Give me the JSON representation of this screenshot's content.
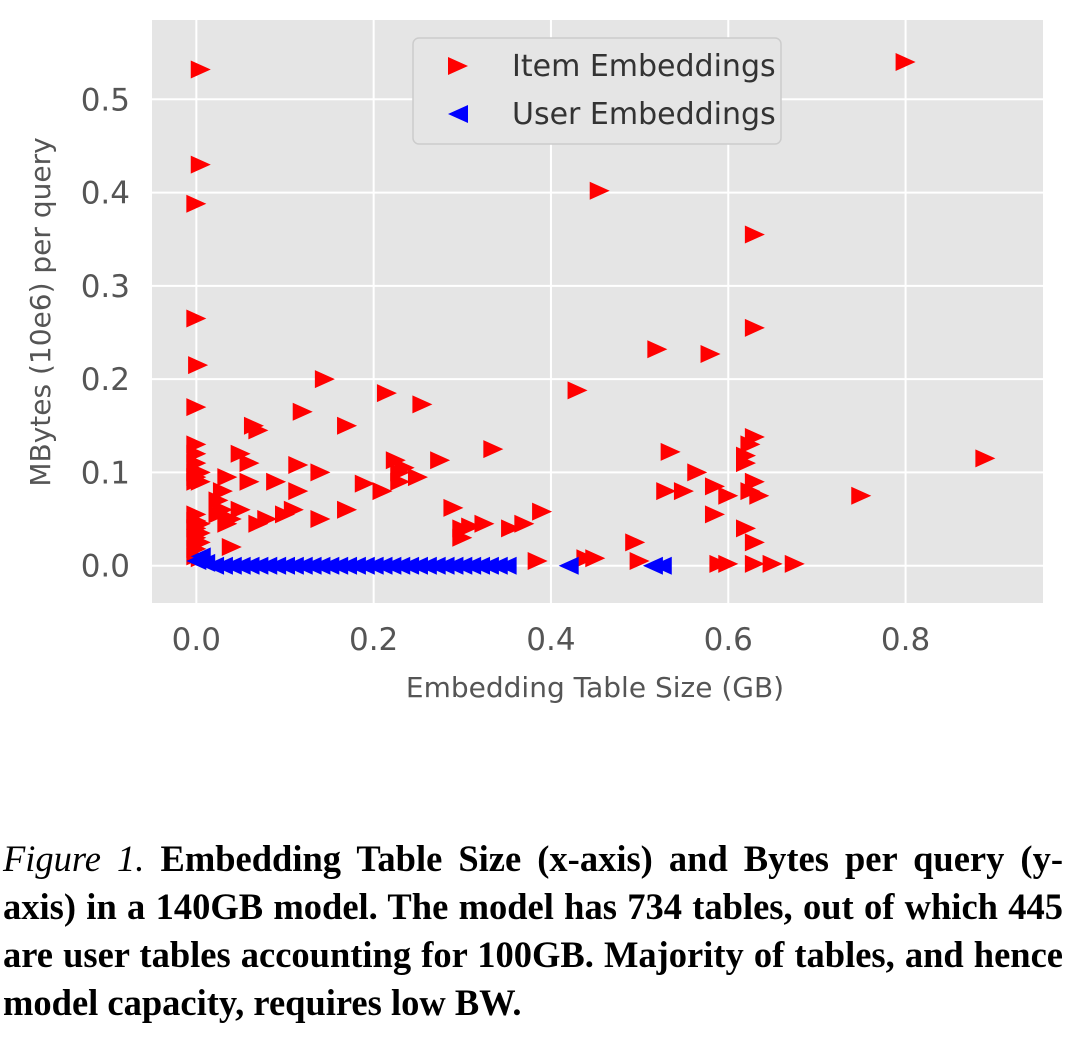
{
  "chart_data": {
    "type": "scatter",
    "xlabel": "Embedding Table Size (GB)",
    "ylabel": "MBytes (10e6) per query",
    "xlim": [
      -0.05,
      0.955
    ],
    "ylim": [
      -0.04,
      0.585
    ],
    "xticks": [
      0.0,
      0.2,
      0.4,
      0.6,
      0.8
    ],
    "xtick_labels": [
      "0.0",
      "0.2",
      "0.4",
      "0.6",
      "0.8"
    ],
    "yticks": [
      0.0,
      0.1,
      0.2,
      0.3,
      0.4,
      0.5
    ],
    "ytick_labels": [
      "0.0",
      "0.1",
      "0.2",
      "0.3",
      "0.4",
      "0.5"
    ],
    "grid": true,
    "legend_position": "top-center",
    "series": [
      {
        "name": "Item Embeddings",
        "color": "#ff0000",
        "marker": "triangle-right",
        "points": [
          [
            0.005,
            0.532
          ],
          [
            0.005,
            0.43
          ],
          [
            0.0,
            0.388
          ],
          [
            0.0,
            0.265
          ],
          [
            0.002,
            0.215
          ],
          [
            0.0,
            0.17
          ],
          [
            0.0,
            0.13
          ],
          [
            0.0,
            0.12
          ],
          [
            0.0,
            0.11
          ],
          [
            0.0,
            0.1
          ],
          [
            0.0,
            0.095
          ],
          [
            0.0,
            0.09
          ],
          [
            0.005,
            0.1
          ],
          [
            0.005,
            0.09
          ],
          [
            0.0,
            0.055
          ],
          [
            0.0,
            0.048
          ],
          [
            0.0,
            0.04
          ],
          [
            0.0,
            0.03
          ],
          [
            0.005,
            0.045
          ],
          [
            0.005,
            0.035
          ],
          [
            0.005,
            0.025
          ],
          [
            0.0,
            0.018
          ],
          [
            0.0,
            0.01
          ],
          [
            0.005,
            0.008
          ],
          [
            0.035,
            0.095
          ],
          [
            0.03,
            0.08
          ],
          [
            0.025,
            0.07
          ],
          [
            0.03,
            0.06
          ],
          [
            0.025,
            0.055
          ],
          [
            0.04,
            0.05
          ],
          [
            0.035,
            0.045
          ],
          [
            0.04,
            0.02
          ],
          [
            0.05,
            0.06
          ],
          [
            0.05,
            0.12
          ],
          [
            0.06,
            0.11
          ],
          [
            0.06,
            0.09
          ],
          [
            0.065,
            0.15
          ],
          [
            0.07,
            0.145
          ],
          [
            0.07,
            0.045
          ],
          [
            0.08,
            0.05
          ],
          [
            0.09,
            0.09
          ],
          [
            0.1,
            0.055
          ],
          [
            0.11,
            0.06
          ],
          [
            0.115,
            0.108
          ],
          [
            0.115,
            0.08
          ],
          [
            0.12,
            0.165
          ],
          [
            0.14,
            0.1
          ],
          [
            0.145,
            0.2
          ],
          [
            0.14,
            0.05
          ],
          [
            0.17,
            0.15
          ],
          [
            0.17,
            0.06
          ],
          [
            0.19,
            0.088
          ],
          [
            0.21,
            0.08
          ],
          [
            0.215,
            0.185
          ],
          [
            0.225,
            0.113
          ],
          [
            0.23,
            0.1
          ],
          [
            0.235,
            0.105
          ],
          [
            0.23,
            0.09
          ],
          [
            0.25,
            0.095
          ],
          [
            0.255,
            0.173
          ],
          [
            0.275,
            0.113
          ],
          [
            0.29,
            0.062
          ],
          [
            0.3,
            0.04
          ],
          [
            0.3,
            0.03
          ],
          [
            0.31,
            0.042
          ],
          [
            0.325,
            0.045
          ],
          [
            0.335,
            0.125
          ],
          [
            0.355,
            0.04
          ],
          [
            0.37,
            0.045
          ],
          [
            0.39,
            0.058
          ],
          [
            0.385,
            0.005
          ],
          [
            0.43,
            0.188
          ],
          [
            0.44,
            0.008
          ],
          [
            0.45,
            0.008
          ],
          [
            0.455,
            0.402
          ],
          [
            0.495,
            0.025
          ],
          [
            0.5,
            0.005
          ],
          [
            0.52,
            0.232
          ],
          [
            0.53,
            0.08
          ],
          [
            0.535,
            0.122
          ],
          [
            0.55,
            0.08
          ],
          [
            0.565,
            0.1
          ],
          [
            0.58,
            0.227
          ],
          [
            0.585,
            0.085
          ],
          [
            0.585,
            0.055
          ],
          [
            0.6,
            0.075
          ],
          [
            0.59,
            0.002
          ],
          [
            0.6,
            0.002
          ],
          [
            0.62,
            0.118
          ],
          [
            0.62,
            0.11
          ],
          [
            0.625,
            0.13
          ],
          [
            0.63,
            0.138
          ],
          [
            0.63,
            0.09
          ],
          [
            0.625,
            0.08
          ],
          [
            0.635,
            0.075
          ],
          [
            0.62,
            0.04
          ],
          [
            0.63,
            0.025
          ],
          [
            0.63,
            0.355
          ],
          [
            0.63,
            0.255
          ],
          [
            0.63,
            0.002
          ],
          [
            0.65,
            0.002
          ],
          [
            0.675,
            0.002
          ],
          [
            0.75,
            0.075
          ],
          [
            0.8,
            0.54
          ],
          [
            0.89,
            0.115
          ]
        ]
      },
      {
        "name": "User Embeddings",
        "color": "#0000ff",
        "marker": "triangle-left",
        "points": [
          [
            0.0,
            0.005
          ],
          [
            0.005,
            0.01
          ],
          [
            0.01,
            0.003
          ],
          [
            0.02,
            0.0
          ],
          [
            0.03,
            0.0
          ],
          [
            0.04,
            0.0
          ],
          [
            0.05,
            0.0
          ],
          [
            0.06,
            0.0
          ],
          [
            0.07,
            0.0
          ],
          [
            0.08,
            0.0
          ],
          [
            0.09,
            0.0
          ],
          [
            0.1,
            0.0
          ],
          [
            0.11,
            0.0
          ],
          [
            0.12,
            0.0
          ],
          [
            0.13,
            0.0
          ],
          [
            0.14,
            0.0
          ],
          [
            0.15,
            0.0
          ],
          [
            0.16,
            0.0
          ],
          [
            0.17,
            0.0
          ],
          [
            0.18,
            0.0
          ],
          [
            0.19,
            0.0
          ],
          [
            0.2,
            0.0
          ],
          [
            0.21,
            0.0
          ],
          [
            0.22,
            0.0
          ],
          [
            0.23,
            0.0
          ],
          [
            0.24,
            0.0
          ],
          [
            0.25,
            0.0
          ],
          [
            0.26,
            0.0
          ],
          [
            0.27,
            0.0
          ],
          [
            0.28,
            0.0
          ],
          [
            0.29,
            0.0
          ],
          [
            0.3,
            0.0
          ],
          [
            0.31,
            0.0
          ],
          [
            0.32,
            0.0
          ],
          [
            0.33,
            0.0
          ],
          [
            0.34,
            0.0
          ],
          [
            0.35,
            0.0
          ],
          [
            0.42,
            0.0
          ],
          [
            0.515,
            0.0
          ],
          [
            0.525,
            0.0
          ]
        ]
      }
    ]
  },
  "caption": {
    "lead": "Figure 1.",
    "body": "Embedding Table Size (x-axis) and Bytes per query (y-axis) in a 140GB model.  The model has 734 tables, out of which 445 are user tables accounting for 100GB. Majority of tables, and hence model capacity, requires low BW."
  }
}
